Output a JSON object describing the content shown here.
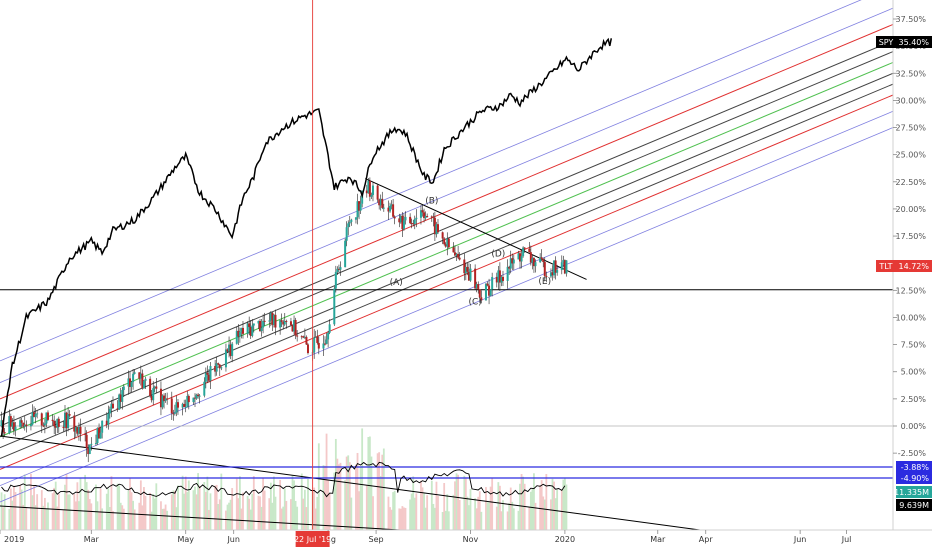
{
  "chart_data": {
    "type": "line",
    "y_axis": {
      "unit": "percent",
      "range": [
        -6.5,
        38.5
      ],
      "ticks": [
        "37.50%",
        "35.00%",
        "32.50%",
        "30.00%",
        "27.50%",
        "25.00%",
        "22.50%",
        "20.00%",
        "17.50%",
        "15.00%",
        "12.50%",
        "10.00%",
        "7.50%",
        "5.00%",
        "2.50%",
        "0.00%",
        "-2.50%"
      ]
    },
    "x_axis": {
      "range": [
        "2019-01-01",
        "2020-07-31"
      ],
      "ticks": [
        {
          "label": "2019",
          "date": "2019-01-01"
        },
        {
          "label": "Mar",
          "date": "2019-03-01"
        },
        {
          "label": "May",
          "date": "2019-05-01"
        },
        {
          "label": "Jun",
          "date": "2019-06-01"
        },
        {
          "label": "Aug",
          "date": "2019-08-01"
        },
        {
          "label": "Sep",
          "date": "2019-09-01"
        },
        {
          "label": "Nov",
          "date": "2019-11-01"
        },
        {
          "label": "2020",
          "date": "2020-01-01"
        },
        {
          "label": "Mar",
          "date": "2020-03-01"
        },
        {
          "label": "Apr",
          "date": "2020-04-01"
        },
        {
          "label": "Jun",
          "date": "2020-06-01"
        },
        {
          "label": "Jul",
          "date": "2020-07-01"
        }
      ]
    },
    "crosshair": {
      "date": "2019-07-22",
      "label": "22 Jul '19"
    },
    "series": [
      {
        "name": "SPY",
        "kind": "line",
        "color": "#000000",
        "last_label": "35.40%",
        "points": [
          [
            "2019-01-02",
            -1.0
          ],
          [
            "2019-01-08",
            5.0
          ],
          [
            "2019-01-18",
            10.0
          ],
          [
            "2019-02-01",
            11.5
          ],
          [
            "2019-02-08",
            13.5
          ],
          [
            "2019-02-15",
            15.5
          ],
          [
            "2019-03-01",
            17.0
          ],
          [
            "2019-03-08",
            16.0
          ],
          [
            "2019-03-15",
            18.0
          ],
          [
            "2019-03-29",
            19.0
          ],
          [
            "2019-04-10",
            21.0
          ],
          [
            "2019-04-25",
            24.0
          ],
          [
            "2019-05-01",
            24.8
          ],
          [
            "2019-05-10",
            21.5
          ],
          [
            "2019-05-20",
            20.0
          ],
          [
            "2019-05-31",
            17.5
          ],
          [
            "2019-06-07",
            21.0
          ],
          [
            "2019-06-14",
            23.0
          ],
          [
            "2019-06-21",
            26.0
          ],
          [
            "2019-07-03",
            27.5
          ],
          [
            "2019-07-15",
            28.5
          ],
          [
            "2019-07-26",
            29.0
          ],
          [
            "2019-08-05",
            22.0
          ],
          [
            "2019-08-15",
            23.0
          ],
          [
            "2019-08-23",
            21.5
          ],
          [
            "2019-08-30",
            25.0
          ],
          [
            "2019-09-13",
            27.5
          ],
          [
            "2019-09-20",
            27.0
          ],
          [
            "2019-10-02",
            23.0
          ],
          [
            "2019-10-08",
            22.5
          ],
          [
            "2019-10-15",
            25.5
          ],
          [
            "2019-10-28",
            27.5
          ],
          [
            "2019-11-08",
            29.0
          ],
          [
            "2019-11-20",
            29.5
          ],
          [
            "2019-11-27",
            30.5
          ],
          [
            "2019-12-03",
            29.8
          ],
          [
            "2019-12-12",
            31.0
          ],
          [
            "2019-12-20",
            32.0
          ],
          [
            "2019-12-27",
            33.0
          ],
          [
            "2020-01-02",
            33.8
          ],
          [
            "2020-01-10",
            32.8
          ],
          [
            "2020-01-17",
            34.0
          ],
          [
            "2020-01-24",
            35.0
          ],
          [
            "2020-01-31",
            35.4
          ]
        ]
      },
      {
        "name": "TLT",
        "kind": "candlestick",
        "up_color": "#26a69a",
        "down_color": "#b22222",
        "last_label": "14.72%",
        "points": [
          [
            "2019-01-02",
            0.0
          ],
          [
            "2019-01-15",
            0.5
          ],
          [
            "2019-01-31",
            0.5
          ],
          [
            "2019-02-15",
            0.5
          ],
          [
            "2019-02-28",
            -2.0
          ],
          [
            "2019-03-15",
            1.5
          ],
          [
            "2019-03-29",
            5.0
          ],
          [
            "2019-04-10",
            3.0
          ],
          [
            "2019-04-25",
            1.5
          ],
          [
            "2019-05-10",
            3.5
          ],
          [
            "2019-05-24",
            6.0
          ],
          [
            "2019-06-05",
            8.5
          ],
          [
            "2019-06-20",
            9.5
          ],
          [
            "2019-07-05",
            10.0
          ],
          [
            "2019-07-20",
            7.0
          ],
          [
            "2019-07-31",
            8.5
          ],
          [
            "2019-08-06",
            13.5
          ],
          [
            "2019-08-15",
            19.0
          ],
          [
            "2019-08-27",
            22.0
          ],
          [
            "2019-09-05",
            20.5
          ],
          [
            "2019-09-12",
            19.5
          ],
          [
            "2019-09-20",
            18.5
          ],
          [
            "2019-10-01",
            20.0
          ],
          [
            "2019-10-10",
            18.0
          ],
          [
            "2019-10-20",
            16.0
          ],
          [
            "2019-11-01",
            14.0
          ],
          [
            "2019-11-08",
            12.0
          ],
          [
            "2019-11-15",
            13.0
          ],
          [
            "2019-11-25",
            14.5
          ],
          [
            "2019-12-05",
            16.0
          ],
          [
            "2019-12-13",
            15.0
          ],
          [
            "2019-12-20",
            14.5
          ],
          [
            "2020-01-02",
            14.72
          ]
        ]
      }
    ],
    "annotations": [
      {
        "text": "(A)",
        "date": "2019-09-14",
        "value": 13.0
      },
      {
        "text": "(B)",
        "date": "2019-10-07",
        "value": 20.5
      },
      {
        "text": "(C)",
        "date": "2019-11-04",
        "value": 11.2
      },
      {
        "text": "(D)",
        "date": "2019-11-19",
        "value": 15.6
      },
      {
        "text": "(E)",
        "date": "2019-12-19",
        "value": 13.1
      }
    ],
    "horizontal_lines": [
      {
        "value": 0.0,
        "color": "#b0b0b0"
      },
      {
        "value": 12.55,
        "color": "#000000"
      }
    ],
    "trendlines": [
      {
        "from": [
          "2019-08-25",
          22.8
        ],
        "to": [
          "2020-01-15",
          13.5
        ],
        "color": "#000000"
      }
    ],
    "channel_lines": {
      "slope_pct_per_month": 1.82,
      "offsets_pct_at_start": [
        -7.0,
        -5.5,
        -4.0,
        -3.0,
        -2.0,
        -1.0,
        0.0,
        1.0,
        2.5,
        4.0,
        6.0
      ],
      "colors": [
        "#8080e0",
        "#8080e0",
        "#e03030",
        "#444444",
        "#444444",
        "#50c050",
        "#444444",
        "#444444",
        "#e03030",
        "#8080e0",
        "#8080e0"
      ]
    },
    "volume_panel": {
      "indicator_lines": [
        {
          "label": "-3.88%",
          "color": "#2b2be0"
        },
        {
          "label": "-4.90%",
          "color": "#2b2be0"
        }
      ],
      "volume_labels": [
        {
          "label": "11.335M",
          "color": "#26a69a"
        },
        {
          "label": "9.639M",
          "color": "#000000"
        }
      ]
    },
    "colors": {
      "spy_tag": "#000000",
      "tlt_tag": "#e53935",
      "crosshair": "#e53935",
      "blue_tag": "#2b2be0",
      "green_tag": "#26a69a"
    }
  }
}
